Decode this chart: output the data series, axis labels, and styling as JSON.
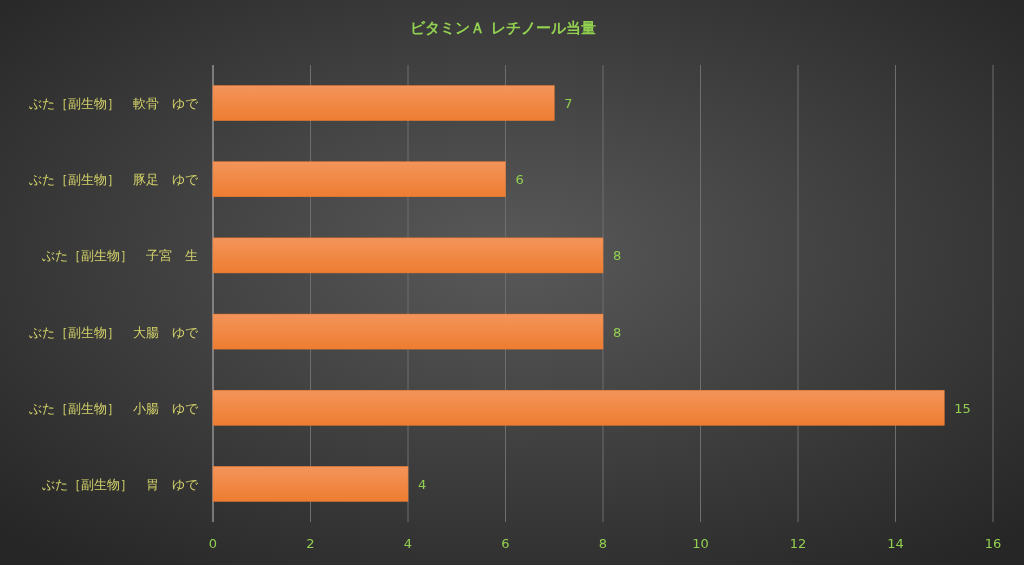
{
  "chart_data": {
    "type": "bar",
    "orientation": "horizontal",
    "title": "ビタミンＡ レチノール当量",
    "categories": [
      "ぶた［副生物］　軟骨　ゆで",
      "ぶた［副生物］　豚足　ゆで",
      "ぶた［副生物］　子宮　生",
      "ぶた［副生物］　大腸　ゆで",
      "ぶた［副生物］　小腸　ゆで",
      "ぶた［副生物］　胃　ゆで"
    ],
    "values": [
      7,
      6,
      8,
      8,
      15,
      4
    ],
    "color": "#ed7d31",
    "xlim": [
      0,
      16
    ],
    "xticks": [
      0,
      2,
      4,
      6,
      8,
      10,
      12,
      14,
      16
    ],
    "grid": "x",
    "data_labels": true
  }
}
